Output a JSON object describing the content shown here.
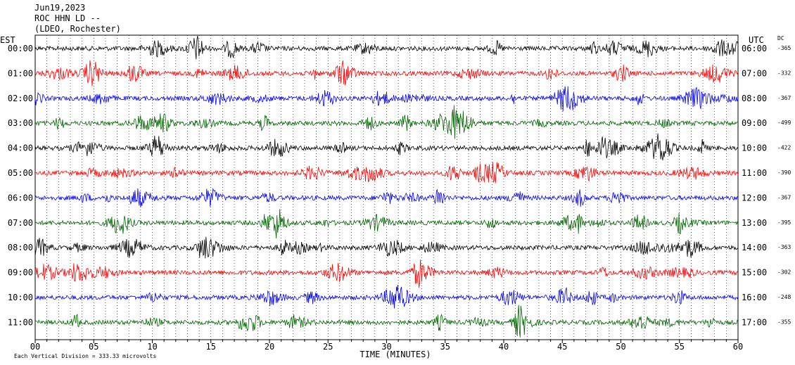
{
  "header": {
    "date": "Jun19,2023",
    "station": "ROC HHN LD --",
    "network": "(LDEO, Rochester)"
  },
  "chart_data": {
    "type": "line",
    "left_axis_label": "EST",
    "right_axis_label": "UTC",
    "dc_label": "DC",
    "xlabel": "TIME (MINUTES)",
    "xlim": [
      0,
      60
    ],
    "x_ticks": [
      "00",
      "05",
      "10",
      "15",
      "20",
      "25",
      "30",
      "35",
      "40",
      "45",
      "50",
      "55",
      "60"
    ],
    "footer": "Each Vertical Division =  333.33 microvolts",
    "trace_colors": [
      "#000000",
      "#ff0000",
      "#0000ff",
      "#006400"
    ],
    "rows": [
      {
        "est": "00:00",
        "utc": "06:00",
        "dc": "-365"
      },
      {
        "est": "01:00",
        "utc": "07:00",
        "dc": "-332"
      },
      {
        "est": "02:00",
        "utc": "08:00",
        "dc": "-367"
      },
      {
        "est": "03:00",
        "utc": "09:00",
        "dc": "-499"
      },
      {
        "est": "04:00",
        "utc": "10:00",
        "dc": "-422"
      },
      {
        "est": "05:00",
        "utc": "11:00",
        "dc": "-390"
      },
      {
        "est": "06:00",
        "utc": "12:00",
        "dc": "-367"
      },
      {
        "est": "07:00",
        "utc": "13:00",
        "dc": "-395"
      },
      {
        "est": "08:00",
        "utc": "14:00",
        "dc": "-363"
      },
      {
        "est": "09:00",
        "utc": "15:00",
        "dc": "-302"
      },
      {
        "est": "10:00",
        "utc": "16:00",
        "dc": "-248"
      },
      {
        "est": "11:00",
        "utc": "17:00",
        "dc": "-355"
      }
    ]
  }
}
